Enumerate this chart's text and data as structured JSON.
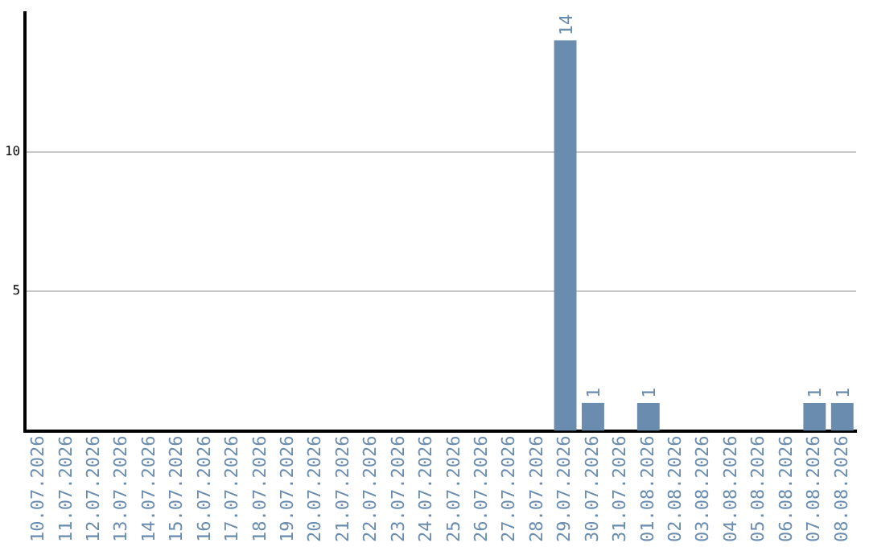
{
  "chart_data": {
    "type": "bar",
    "categories": [
      "10.07.2026",
      "11.07.2026",
      "12.07.2026",
      "13.07.2026",
      "14.07.2026",
      "15.07.2026",
      "16.07.2026",
      "17.07.2026",
      "18.07.2026",
      "19.07.2026",
      "20.07.2026",
      "21.07.2026",
      "22.07.2026",
      "23.07.2026",
      "24.07.2026",
      "25.07.2026",
      "26.07.2026",
      "27.07.2026",
      "28.07.2026",
      "29.07.2026",
      "30.07.2026",
      "31.07.2026",
      "01.08.2026",
      "02.08.2026",
      "03.08.2026",
      "04.08.2026",
      "05.08.2026",
      "06.08.2026",
      "07.08.2026",
      "08.08.2026"
    ],
    "values": [
      0,
      0,
      0,
      0,
      0,
      0,
      0,
      0,
      0,
      0,
      0,
      0,
      0,
      0,
      0,
      0,
      0,
      0,
      0,
      14,
      1,
      0,
      1,
      0,
      0,
      0,
      0,
      0,
      1,
      1
    ],
    "value_labels": [
      null,
      null,
      null,
      null,
      null,
      null,
      null,
      null,
      null,
      null,
      null,
      null,
      null,
      null,
      null,
      null,
      null,
      null,
      null,
      "14",
      "1",
      null,
      "1",
      null,
      null,
      null,
      null,
      null,
      "1",
      "1"
    ],
    "color": "#6a8caf",
    "ylim": [
      0,
      15
    ],
    "yticks": [
      5,
      10
    ],
    "grid": "y",
    "legend": false
  }
}
